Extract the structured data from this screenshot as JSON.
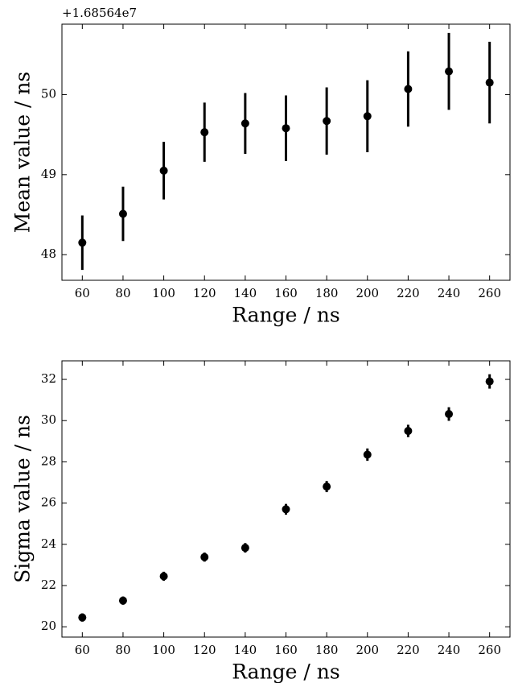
{
  "chart_data": [
    {
      "type": "scatter",
      "offset_label": "+1.68564e7",
      "xlabel": "Range / ns",
      "ylabel": "Mean value / ns",
      "x": [
        60,
        80,
        100,
        120,
        140,
        160,
        180,
        200,
        220,
        240,
        260
      ],
      "values": [
        48.15,
        48.51,
        49.05,
        49.53,
        49.64,
        49.58,
        49.67,
        49.73,
        50.07,
        50.29,
        50.15
      ],
      "errors": [
        0.34,
        0.34,
        0.36,
        0.37,
        0.38,
        0.41,
        0.42,
        0.45,
        0.47,
        0.48,
        0.51
      ],
      "color": "#000000",
      "xlim": [
        50,
        270
      ],
      "xticks": [
        60,
        80,
        100,
        120,
        140,
        160,
        180,
        200,
        220,
        240,
        260
      ],
      "ylim": [
        47.68,
        50.88
      ],
      "yticks": [
        48,
        49,
        50
      ]
    },
    {
      "type": "scatter",
      "xlabel": "Range / ns",
      "ylabel": "Sigma value / ns",
      "x": [
        60,
        80,
        100,
        120,
        140,
        160,
        180,
        200,
        220,
        240,
        260
      ],
      "values": [
        20.45,
        21.27,
        22.45,
        23.38,
        23.83,
        25.7,
        26.8,
        28.35,
        29.5,
        30.32,
        31.9
      ],
      "errors": [
        0.2,
        0.2,
        0.22,
        0.22,
        0.23,
        0.26,
        0.27,
        0.3,
        0.3,
        0.33,
        0.35
      ],
      "color": "#000000",
      "xlim": [
        50,
        270
      ],
      "xticks": [
        60,
        80,
        100,
        120,
        140,
        160,
        180,
        200,
        220,
        240,
        260
      ],
      "ylim": [
        19.5,
        32.9
      ],
      "yticks": [
        20,
        22,
        24,
        26,
        28,
        30,
        32
      ]
    }
  ]
}
